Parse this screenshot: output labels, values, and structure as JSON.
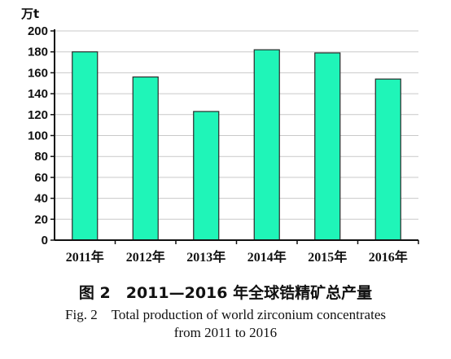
{
  "chart_data": {
    "type": "bar",
    "unit_label": "万t",
    "categories": [
      "2011年",
      "2012年",
      "2013年",
      "2014年",
      "2015年",
      "2016年"
    ],
    "values": [
      180,
      156,
      123,
      182,
      179,
      154
    ],
    "y_ticks": [
      0,
      20,
      40,
      60,
      80,
      100,
      120,
      140,
      160,
      180,
      200
    ],
    "ylim": [
      0,
      200
    ],
    "grid": true,
    "bar_color": "#1ff5b8",
    "bar_edge_color": "#2a2a2a",
    "grid_color": "#c9c9c9"
  },
  "caption": {
    "chinese": "图 2　2011—2016 年全球锆精矿总产量",
    "english_line1": "Fig. 2　Total production of world zirconium concentrates",
    "english_line2": "from 2011 to 2016"
  }
}
